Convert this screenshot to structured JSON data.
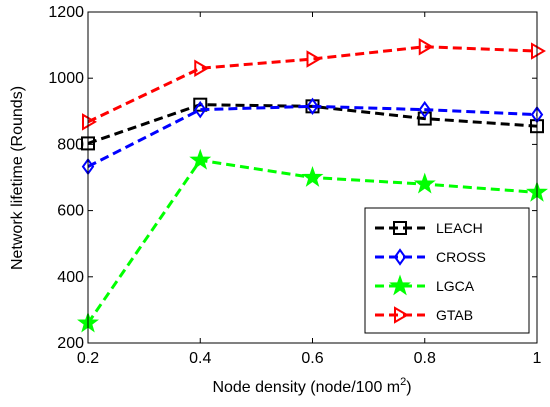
{
  "chart_data": {
    "type": "line",
    "title": "",
    "xlabel": "Node density (node/100 m",
    "xlabel_sup": "2",
    "xlabel_end": ")",
    "ylabel": "Network lifetime (Rounds)",
    "x": [
      0.2,
      0.4,
      0.6,
      0.8,
      1.0
    ],
    "xlim": [
      0.2,
      1.0
    ],
    "ylim": [
      200,
      1200
    ],
    "xticks": [
      "0.2",
      "0.4",
      "0.6",
      "0.8",
      "1"
    ],
    "yticks": [
      "200",
      "400",
      "600",
      "800",
      "1000",
      "1200"
    ],
    "grid": false,
    "legend_position": "bottom-right",
    "series": [
      {
        "name": "LEACH",
        "values": [
          803,
          920,
          915,
          878,
          855
        ],
        "color": "#000000",
        "marker": "square"
      },
      {
        "name": "CROSS",
        "values": [
          733,
          905,
          915,
          905,
          890
        ],
        "color": "#0000ff",
        "marker": "diamond"
      },
      {
        "name": "LGCA",
        "values": [
          260,
          752,
          700,
          680,
          655
        ],
        "color": "#00ff00",
        "marker": "star"
      },
      {
        "name": "GTAB",
        "values": [
          868,
          1030,
          1058,
          1095,
          1082
        ],
        "color": "#ff0000",
        "marker": "triangle-right"
      }
    ]
  }
}
